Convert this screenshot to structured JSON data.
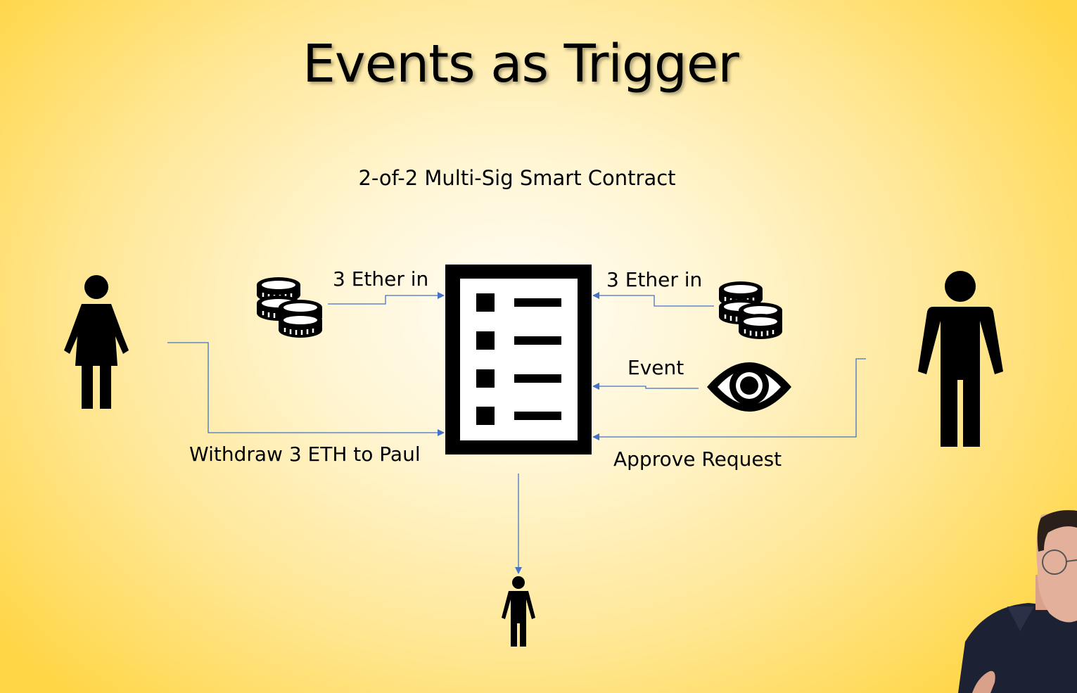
{
  "slide": {
    "title": "Events as Trigger",
    "subtitle": "2-of-2 Multi-Sig Smart Contract"
  },
  "labels": {
    "ether_in_left": "3 Ether in",
    "ether_in_right": "3 Ether in",
    "event": "Event",
    "withdraw": "Withdraw 3 ETH to Paul",
    "approve": "Approve Request"
  },
  "icons": {
    "woman": "woman-icon",
    "man": "man-icon",
    "recipient": "person-icon",
    "coins_left": "coins-icon",
    "coins_right": "coins-icon",
    "contract": "checklist-document-icon",
    "event": "eye-icon"
  },
  "colors": {
    "arrow": "#4472c4",
    "icon": "#000000"
  }
}
